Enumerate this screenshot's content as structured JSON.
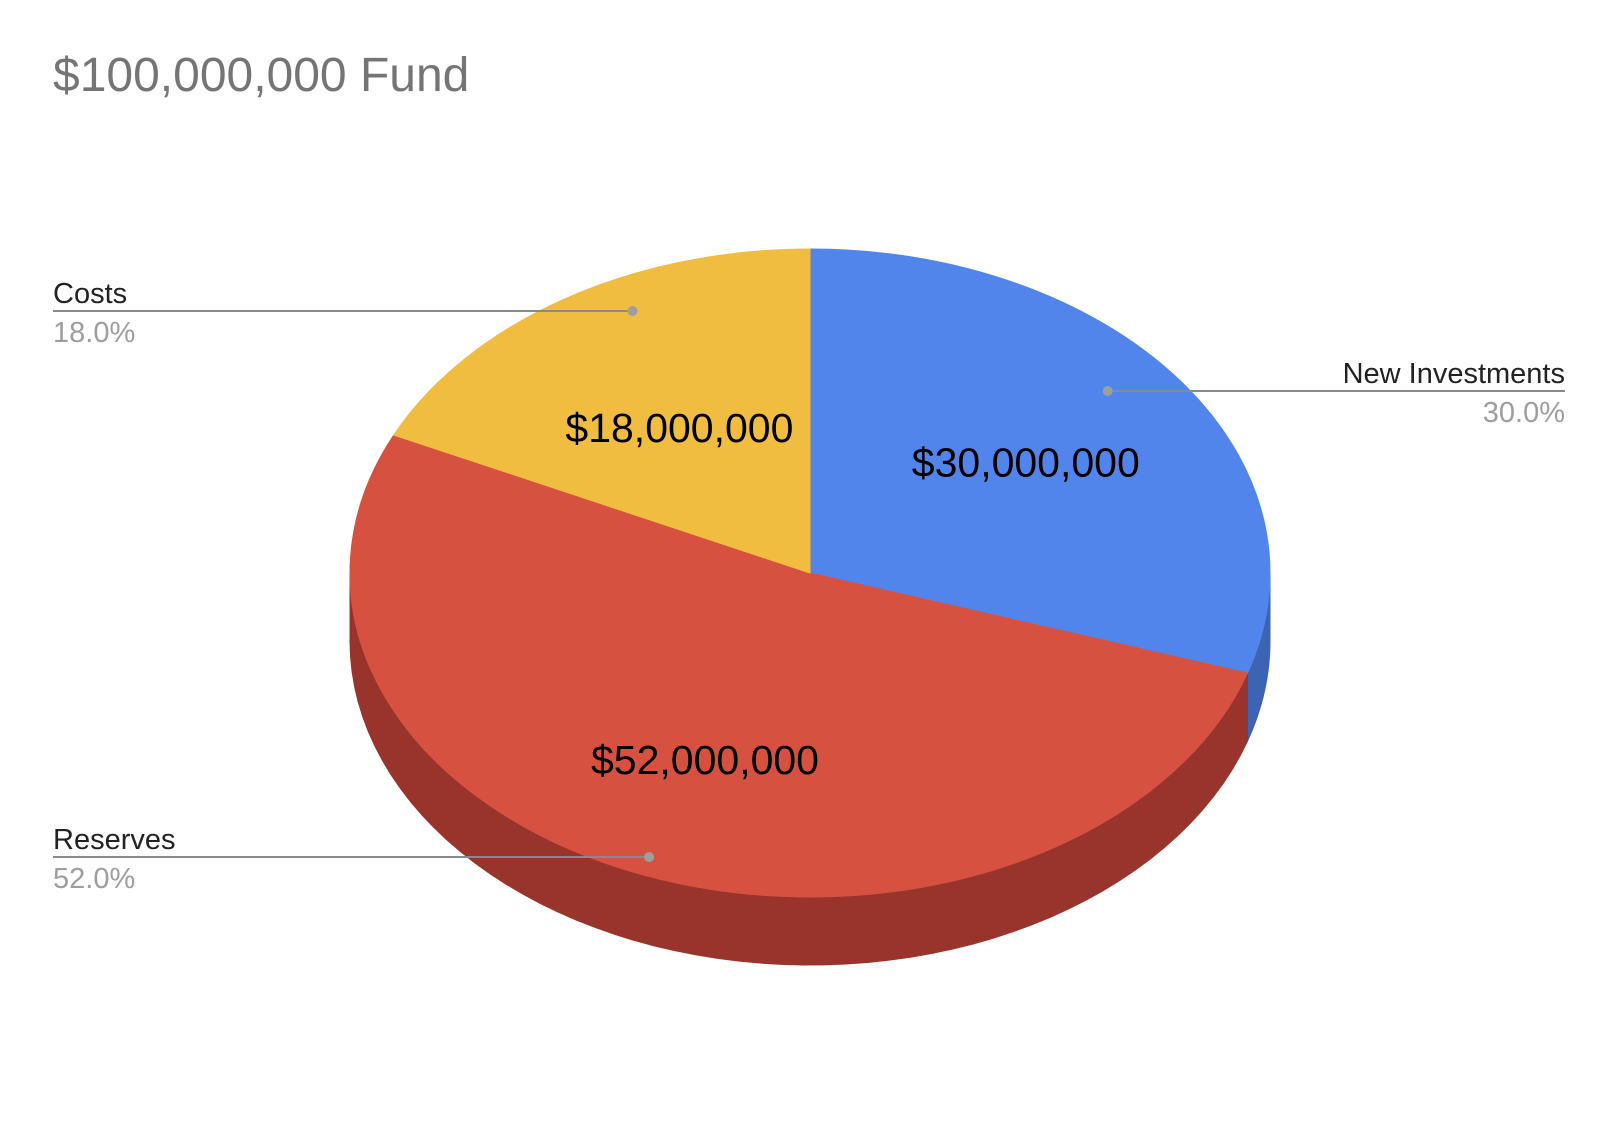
{
  "chart_data": {
    "type": "pie",
    "title": "$100,000,000 Fund",
    "style": "3d",
    "slices": [
      {
        "name": "New Investments",
        "value": 30000000,
        "value_label": "$30,000,000",
        "percent_label": "30.0%",
        "color": "#5285ec",
        "side_color": "#3d63b5"
      },
      {
        "name": "Reserves",
        "value": 52000000,
        "value_label": "$52,000,000",
        "percent_label": "52.0%",
        "color": "#d75140",
        "side_color": "#99342c"
      },
      {
        "name": "Costs",
        "value": 18000000,
        "value_label": "$18,000,000",
        "percent_label": "18.0%",
        "color": "#f0bd41",
        "side_color": "#b58d2d"
      }
    ]
  }
}
